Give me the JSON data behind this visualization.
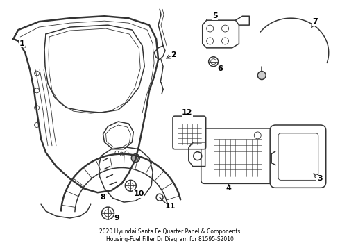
{
  "title": "2020 Hyundai Santa Fe Quarter Panel & Components\nHousing-Fuel Filler Dr Diagram for 81595-S2010",
  "bg_color": "#ffffff",
  "line_color": "#333333",
  "label_color": "#000000",
  "figsize": [
    4.9,
    3.6
  ],
  "dpi": 100,
  "lw_main": 1.1,
  "lw_thin": 0.6,
  "lw_thick": 1.8
}
